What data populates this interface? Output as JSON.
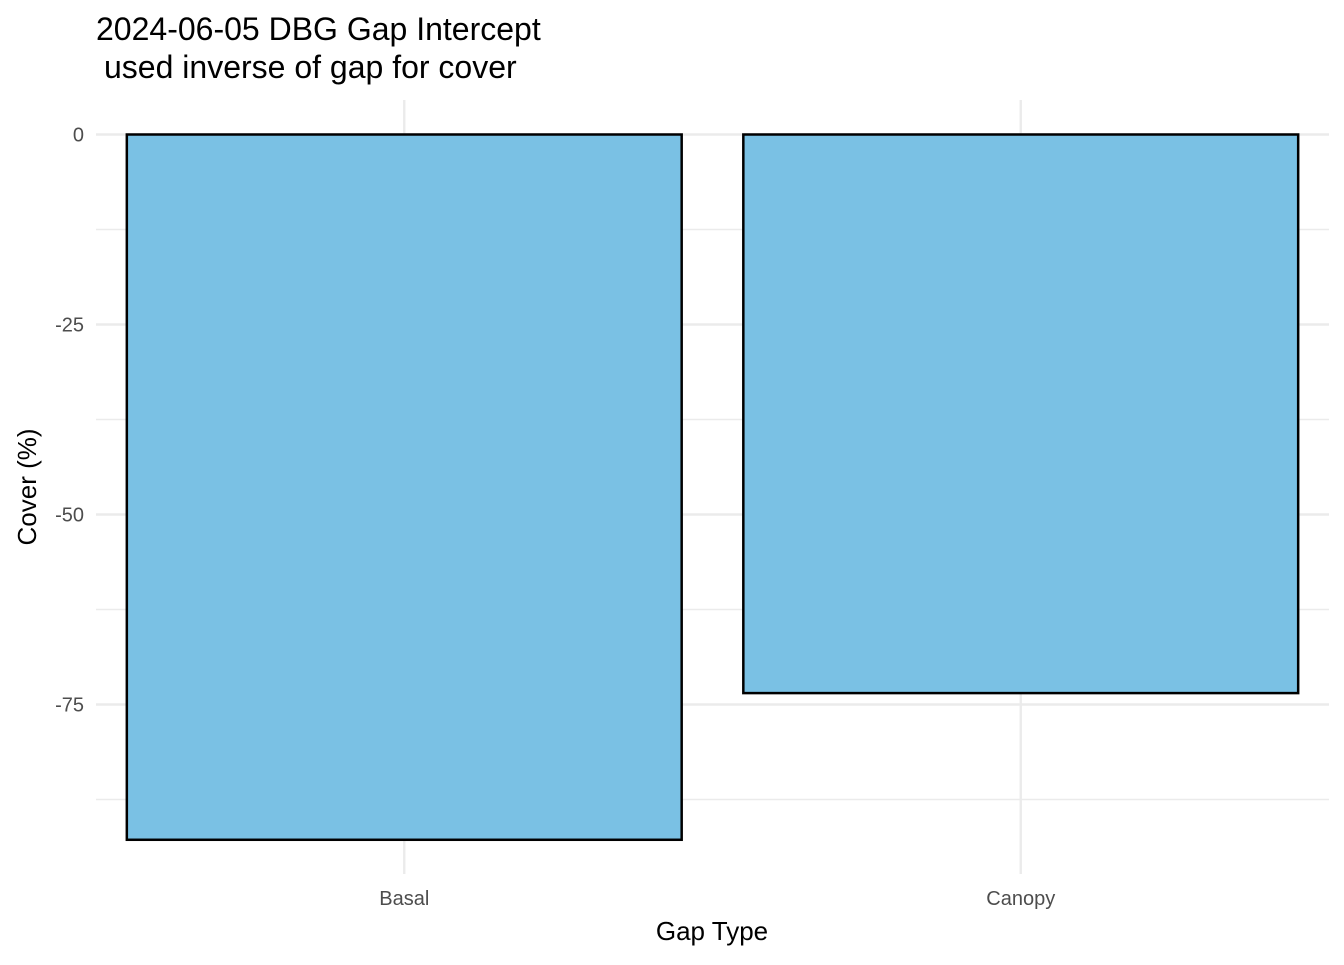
{
  "chart_data": {
    "type": "bar",
    "title": "2024-06-05 DBG Gap Intercept",
    "subtitle": "used inverse of gap for cover",
    "xlabel": "Gap Type",
    "ylabel": "Cover (%)",
    "categories": [
      "Basal",
      "Canopy"
    ],
    "values": [
      -92.8,
      -73.5
    ],
    "ylim": [
      -96,
      4
    ],
    "yticks": [
      0,
      -25,
      -50,
      -75
    ],
    "ytick_labels": [
      "0",
      "-25",
      "-50",
      "-75"
    ],
    "y_minor": [
      -12.5,
      -37.5,
      -62.5,
      -87.5
    ],
    "bar_fill": "#7AC1E4",
    "bar_outline": "#000000",
    "grid": true,
    "legend": "none"
  }
}
